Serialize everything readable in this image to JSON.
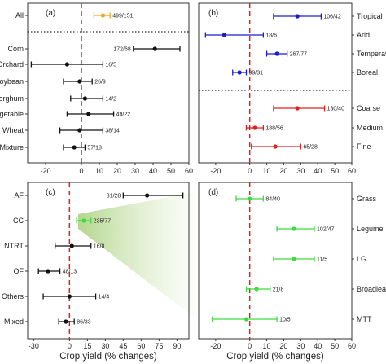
{
  "figure": {
    "x_axis_title_left": "Crop yield (% changes)",
    "x_axis_title_right": "Crop yield (% changes)"
  },
  "colors": {
    "black": "#111111",
    "orange": "#f4a81c",
    "blue": "#1c1ccc",
    "red": "#e02020",
    "green": "#3ddc3d",
    "zero_line": "#e02020",
    "highlight": "#a7cf7a"
  },
  "chart_data": [
    {
      "type": "scatter",
      "panel": "(a)",
      "xlim": [
        -30,
        60
      ],
      "xticks": [
        -20,
        0,
        10,
        20,
        30,
        40,
        50,
        60
      ],
      "zero_line": 0,
      "separators_after": [
        0
      ],
      "points": [
        {
          "category": "All",
          "mean": 12,
          "ci": [
            7,
            16
          ],
          "label": "499/151",
          "color": "orange"
        },
        {
          "category": "Corn",
          "mean": 41,
          "ci": [
            29,
            55
          ],
          "label": "172/68",
          "color": "black"
        },
        {
          "category": "Orchard",
          "mean": -8,
          "ci": [
            -28,
            12
          ],
          "label": "16/5",
          "color": "black"
        },
        {
          "category": "Soybean",
          "mean": -1,
          "ci": [
            -10,
            6
          ],
          "label": "26/9",
          "color": "black"
        },
        {
          "category": "Sorghum",
          "mean": 2,
          "ci": [
            -6,
            12
          ],
          "label": "14/2",
          "color": "black"
        },
        {
          "category": "Vegetable",
          "mean": 4,
          "ci": [
            -8,
            18
          ],
          "label": "49/22",
          "color": "black"
        },
        {
          "category": "Wheat",
          "mean": -1,
          "ci": [
            -12,
            12
          ],
          "label": "38/14",
          "color": "black"
        },
        {
          "category": "Mixture",
          "mean": -4,
          "ci": [
            -10,
            2
          ],
          "label": "57/18",
          "color": "black"
        }
      ]
    },
    {
      "type": "scatter",
      "panel": "(b)",
      "xlim": [
        -30,
        60
      ],
      "xticks": [
        -20,
        0,
        10,
        20,
        30,
        40,
        50,
        60
      ],
      "zero_line": 0,
      "separators_after": [
        3
      ],
      "points": [
        {
          "category": "Tropical",
          "mean": 28,
          "ci": [
            14,
            42
          ],
          "label": "106/42",
          "color": "blue"
        },
        {
          "category": "Arid",
          "mean": -15,
          "ci": [
            -26,
            8
          ],
          "label": "18/6",
          "color": "blue"
        },
        {
          "category": "Temperate",
          "mean": 16,
          "ci": [
            10,
            22
          ],
          "label": "267/77",
          "color": "blue"
        },
        {
          "category": "Boreal",
          "mean": -6,
          "ci": [
            -10,
            -2
          ],
          "label": "99/31",
          "color": "blue"
        },
        {
          "category": "Coarse",
          "mean": 28,
          "ci": [
            14,
            44
          ],
          "label": "130/40",
          "color": "red"
        },
        {
          "category": "Medium",
          "mean": 3,
          "ci": [
            -2,
            8
          ],
          "label": "188/56",
          "color": "red"
        },
        {
          "category": "Fine",
          "mean": 15,
          "ci": [
            1,
            30
          ],
          "label": "65/28",
          "color": "red"
        }
      ]
    },
    {
      "type": "scatter",
      "panel": "(c)",
      "xlim": [
        -35,
        100
      ],
      "xticks": [
        -30,
        0,
        15,
        30,
        45,
        60,
        75,
        90
      ],
      "zero_line": 0,
      "separators_after": [],
      "points": [
        {
          "category": "AF",
          "mean": 65,
          "ci": [
            45,
            95
          ],
          "label": "81/28",
          "color": "black"
        },
        {
          "category": "CC",
          "mean": 12,
          "ci": [
            6,
            18
          ],
          "label": "235/77",
          "color": "green"
        },
        {
          "category": "NTRT",
          "mean": 2,
          "ci": [
            -12,
            18
          ],
          "label": "16/8",
          "color": "black"
        },
        {
          "category": "OF",
          "mean": -18,
          "ci": [
            -26,
            -8
          ],
          "label": "48/13",
          "color": "black"
        },
        {
          "category": "Others",
          "mean": 0,
          "ci": [
            -22,
            22
          ],
          "label": "14/4",
          "color": "black"
        },
        {
          "category": "Mixed",
          "mean": -3,
          "ci": [
            -9,
            4
          ],
          "label": "86/33",
          "color": "black"
        }
      ]
    },
    {
      "type": "scatter",
      "panel": "(d)",
      "xlim": [
        -30,
        60
      ],
      "xticks": [
        -20,
        0,
        10,
        20,
        30,
        40,
        50,
        60
      ],
      "zero_line": 0,
      "separators_after": [],
      "points": [
        {
          "category": "Grass",
          "mean": 0,
          "ci": [
            -8,
            8
          ],
          "label": "84/40",
          "color": "green"
        },
        {
          "category": "Legume",
          "mean": 26,
          "ci": [
            16,
            38
          ],
          "label": "102/47",
          "color": "green"
        },
        {
          "category": "LG",
          "mean": 26,
          "ci": [
            14,
            38
          ],
          "label": "11/5",
          "color": "green"
        },
        {
          "category": "Broadleaf",
          "mean": 4,
          "ci": [
            -2,
            12
          ],
          "label": "21/8",
          "color": "green"
        },
        {
          "category": "MTT",
          "mean": -2,
          "ci": [
            -22,
            16
          ],
          "label": "10/5",
          "color": "green"
        }
      ]
    }
  ]
}
